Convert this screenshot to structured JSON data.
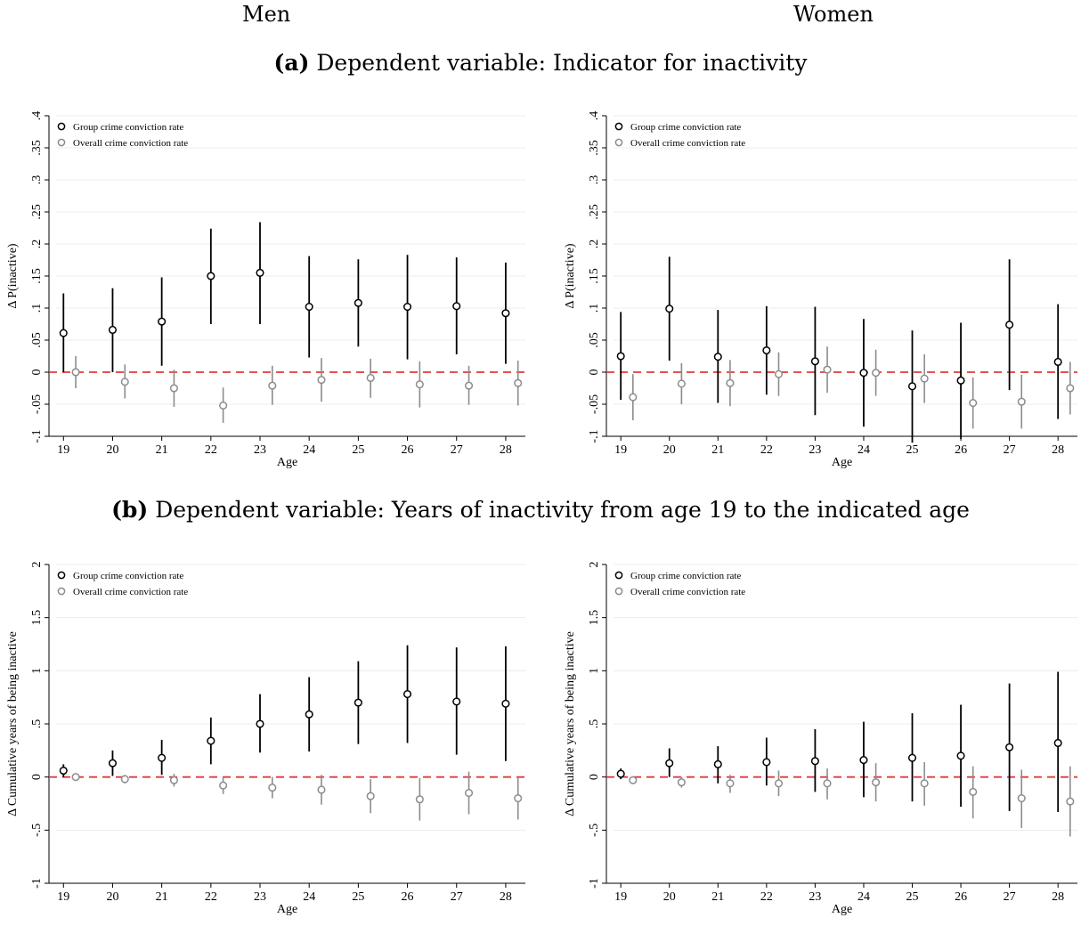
{
  "columns": {
    "left": "Men",
    "right": "Women"
  },
  "panels": {
    "a": {
      "letter": "(a)",
      "text": "Dependent variable: Indicator for inactivity"
    },
    "b": {
      "letter": "(b)",
      "text": "Dependent variable: Years of inactivity from age 19 to the indicated age"
    }
  },
  "colors": {
    "group": "#000000",
    "overall": "#8c8c8c",
    "zero_line": "#e03a3a"
  },
  "chart_data": [
    {
      "type": "scatter",
      "id": "men_a",
      "xlabel": "Age",
      "ylabel": "Δ P(inactive)",
      "x": [
        19,
        20,
        21,
        22,
        23,
        24,
        25,
        26,
        27,
        28
      ],
      "ylim": [
        -0.1,
        0.4
      ],
      "yticks": [
        -0.1,
        -0.05,
        0,
        0.05,
        0.1,
        0.15,
        0.2,
        0.25,
        0.3,
        0.35,
        0.4
      ],
      "ytick_labels": [
        "-.1",
        "-.05",
        "0",
        ".05",
        ".1",
        ".15",
        ".2",
        ".25",
        ".3",
        ".35",
        ".4"
      ],
      "legend": "top-left",
      "series": [
        {
          "name": "Group crime conviction rate",
          "values": [
            0.061,
            0.066,
            0.079,
            0.15,
            0.155,
            0.102,
            0.108,
            0.102,
            0.103,
            0.092
          ],
          "ci_low": [
            0.0,
            0.0,
            0.01,
            0.075,
            0.075,
            0.023,
            0.04,
            0.02,
            0.028,
            0.013
          ],
          "ci_high": [
            0.123,
            0.131,
            0.148,
            0.224,
            0.234,
            0.181,
            0.176,
            0.183,
            0.179,
            0.171
          ]
        },
        {
          "name": "Overall crime conviction rate",
          "values": [
            0.0,
            -0.015,
            -0.025,
            -0.052,
            -0.021,
            -0.012,
            -0.009,
            -0.019,
            -0.021,
            -0.017
          ],
          "ci_low": [
            -0.025,
            -0.041,
            -0.054,
            -0.079,
            -0.051,
            -0.046,
            -0.04,
            -0.055,
            -0.051,
            -0.052
          ],
          "ci_high": [
            0.025,
            0.012,
            0.004,
            -0.024,
            0.01,
            0.022,
            0.021,
            0.017,
            0.01,
            0.018
          ]
        }
      ]
    },
    {
      "type": "scatter",
      "id": "women_a",
      "xlabel": "Age",
      "ylabel": "Δ P(inactive)",
      "x": [
        19,
        20,
        21,
        22,
        23,
        24,
        25,
        26,
        27,
        28
      ],
      "ylim": [
        -0.1,
        0.4
      ],
      "yticks": [
        -0.1,
        -0.05,
        0,
        0.05,
        0.1,
        0.15,
        0.2,
        0.25,
        0.3,
        0.35,
        0.4
      ],
      "ytick_labels": [
        "-.1",
        "-.05",
        "0",
        ".05",
        ".1",
        ".15",
        ".2",
        ".25",
        ".3",
        ".35",
        ".4"
      ],
      "legend": "top-left",
      "series": [
        {
          "name": "Group crime conviction rate",
          "values": [
            0.025,
            0.099,
            0.024,
            0.034,
            0.017,
            -0.001,
            -0.022,
            -0.013,
            0.074,
            0.016
          ],
          "ci_low": [
            -0.043,
            0.018,
            -0.048,
            -0.035,
            -0.067,
            -0.085,
            -0.11,
            -0.104,
            -0.028,
            -0.073
          ],
          "ci_high": [
            0.094,
            0.18,
            0.097,
            0.103,
            0.102,
            0.083,
            0.065,
            0.077,
            0.176,
            0.106
          ]
        },
        {
          "name": "Overall crime conviction rate",
          "values": [
            -0.039,
            -0.018,
            -0.017,
            -0.003,
            0.004,
            -0.001,
            -0.01,
            -0.048,
            -0.046,
            -0.025
          ],
          "ci_low": [
            -0.075,
            -0.05,
            -0.053,
            -0.037,
            -0.032,
            -0.037,
            -0.048,
            -0.088,
            -0.088,
            -0.066
          ],
          "ci_high": [
            -0.003,
            0.014,
            0.019,
            0.031,
            0.04,
            0.035,
            0.028,
            -0.008,
            -0.004,
            0.016
          ]
        }
      ]
    },
    {
      "type": "scatter",
      "id": "men_b",
      "xlabel": "Age",
      "ylabel": "Δ Cumulative years of being inactive",
      "x": [
        19,
        20,
        21,
        22,
        23,
        24,
        25,
        26,
        27,
        28
      ],
      "ylim": [
        -1,
        2
      ],
      "yticks": [
        -1,
        -0.5,
        0,
        0.5,
        1,
        1.5,
        2
      ],
      "ytick_labels": [
        "-1",
        "-.5",
        "0",
        ".5",
        "1",
        "1.5",
        "2"
      ],
      "legend": "top-left",
      "series": [
        {
          "name": "Group crime conviction rate",
          "values": [
            0.06,
            0.13,
            0.18,
            0.34,
            0.5,
            0.59,
            0.7,
            0.78,
            0.71,
            0.69
          ],
          "ci_low": [
            0.0,
            0.01,
            0.02,
            0.12,
            0.23,
            0.24,
            0.31,
            0.32,
            0.21,
            0.15
          ],
          "ci_high": [
            0.12,
            0.25,
            0.35,
            0.56,
            0.78,
            0.94,
            1.09,
            1.24,
            1.22,
            1.23
          ]
        },
        {
          "name": "Overall crime conviction rate",
          "values": [
            0.0,
            -0.02,
            -0.03,
            -0.08,
            -0.1,
            -0.12,
            -0.18,
            -0.21,
            -0.15,
            -0.2
          ],
          "ci_low": [
            -0.02,
            -0.06,
            -0.09,
            -0.16,
            -0.2,
            -0.26,
            -0.34,
            -0.41,
            -0.35,
            -0.4
          ],
          "ci_high": [
            0.02,
            0.02,
            0.03,
            0.0,
            0.0,
            0.02,
            -0.02,
            -0.01,
            0.05,
            0.0
          ]
        }
      ]
    },
    {
      "type": "scatter",
      "id": "women_b",
      "xlabel": "Age",
      "ylabel": "Δ Cumulative years of being inactive",
      "x": [
        19,
        20,
        21,
        22,
        23,
        24,
        25,
        26,
        27,
        28
      ],
      "ylim": [
        -1,
        2
      ],
      "yticks": [
        -1,
        -0.5,
        0,
        0.5,
        1,
        1.5,
        2
      ],
      "ytick_labels": [
        "-1",
        "-.5",
        "0",
        ".5",
        "1",
        "1.5",
        "2"
      ],
      "legend": "top-left",
      "series": [
        {
          "name": "Group crime conviction rate",
          "values": [
            0.03,
            0.13,
            0.12,
            0.14,
            0.15,
            0.16,
            0.18,
            0.2,
            0.28,
            0.32
          ],
          "ci_low": [
            -0.02,
            0.0,
            -0.06,
            -0.08,
            -0.14,
            -0.19,
            -0.23,
            -0.28,
            -0.32,
            -0.33
          ],
          "ci_high": [
            0.08,
            0.27,
            0.29,
            0.37,
            0.45,
            0.52,
            0.6,
            0.68,
            0.88,
            0.99
          ]
        },
        {
          "name": "Overall crime conviction rate",
          "values": [
            -0.03,
            -0.05,
            -0.06,
            -0.06,
            -0.06,
            -0.05,
            -0.06,
            -0.14,
            -0.2,
            -0.23
          ],
          "ci_low": [
            -0.06,
            -0.1,
            -0.15,
            -0.18,
            -0.21,
            -0.23,
            -0.27,
            -0.39,
            -0.48,
            -0.56
          ],
          "ci_high": [
            0.0,
            0.0,
            0.02,
            0.06,
            0.08,
            0.13,
            0.14,
            0.1,
            0.07,
            0.1
          ]
        }
      ]
    }
  ]
}
